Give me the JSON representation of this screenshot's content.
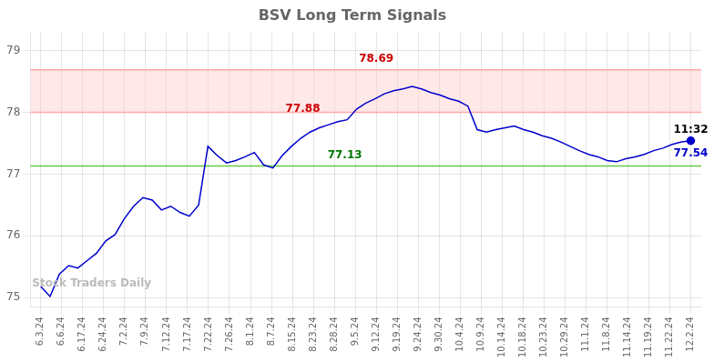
{
  "chart_data": {
    "type": "line",
    "title": "BSV Long Term Signals",
    "color": "#0000cc",
    "x": [
      0,
      0.442857,
      0.885714,
      1.328571,
      1.771429,
      2.214286,
      2.657143,
      3.1,
      3.542857,
      3.985714,
      4.428571,
      4.871429,
      5.314286,
      5.757143,
      6.2,
      6.642857,
      7.085714,
      7.528571,
      7.971429,
      8.414286,
      8.857143,
      9.3,
      9.742857,
      10.185714,
      10.628571,
      11.071429,
      11.514286,
      11.957143,
      12.4,
      12.842857,
      13.285714,
      13.728571,
      14.171429,
      14.614286,
      15.057143,
      15.5,
      15.942857,
      16.385714,
      16.828571,
      17.271429,
      17.714286,
      18.157143,
      18.6,
      19.042857,
      19.485714,
      19.928571,
      20.371429,
      20.814286,
      21.257143,
      21.7,
      22.142857,
      22.585714,
      23.028571,
      23.471429,
      23.914286,
      24.357143,
      24.8,
      25.242857,
      25.685714,
      26.128571,
      26.571429,
      27.014286,
      27.457143,
      27.9,
      28.342857,
      28.785714,
      29.228571,
      29.671429,
      30.114286,
      30.557143,
      31
    ],
    "values": [
      75.18,
      75.02,
      75.38,
      75.52,
      75.48,
      75.6,
      75.72,
      75.92,
      76.02,
      76.28,
      76.48,
      76.62,
      76.58,
      76.42,
      76.48,
      76.38,
      76.32,
      76.5,
      77.45,
      77.3,
      77.18,
      77.22,
      77.28,
      77.35,
      77.15,
      77.1,
      77.3,
      77.45,
      77.58,
      77.68,
      77.75,
      77.8,
      77.85,
      77.88,
      78.05,
      78.15,
      78.22,
      78.3,
      78.35,
      78.38,
      78.42,
      78.38,
      78.32,
      78.28,
      78.22,
      78.18,
      78.1,
      77.72,
      77.68,
      77.72,
      77.75,
      77.78,
      77.72,
      77.68,
      77.62,
      77.58,
      77.52,
      77.45,
      77.38,
      77.32,
      77.28,
      77.22,
      77.2,
      77.25,
      77.28,
      77.32,
      77.38,
      77.42,
      77.48,
      77.52,
      77.54
    ],
    "xlim": [
      -0.5,
      31.5
    ],
    "xticks": [
      {
        "value": 0,
        "label": "6.3.24"
      },
      {
        "value": 1,
        "label": "6.6.24"
      },
      {
        "value": 2,
        "label": "6.17.24"
      },
      {
        "value": 3,
        "label": "6.24.24"
      },
      {
        "value": 4,
        "label": "7.2.24"
      },
      {
        "value": 5,
        "label": "7.9.24"
      },
      {
        "value": 6,
        "label": "7.12.24"
      },
      {
        "value": 7,
        "label": "7.17.24"
      },
      {
        "value": 8,
        "label": "7.22.24"
      },
      {
        "value": 9,
        "label": "7.26.24"
      },
      {
        "value": 10,
        "label": "8.1.24"
      },
      {
        "value": 11,
        "label": "8.7.24"
      },
      {
        "value": 12,
        "label": "8.15.24"
      },
      {
        "value": 13,
        "label": "8.23.24"
      },
      {
        "value": 14,
        "label": "8.28.24"
      },
      {
        "value": 15,
        "label": "9.5.24"
      },
      {
        "value": 16,
        "label": "9.12.24"
      },
      {
        "value": 17,
        "label": "9.19.24"
      },
      {
        "value": 18,
        "label": "9.24.24"
      },
      {
        "value": 19,
        "label": "9.30.24"
      },
      {
        "value": 20,
        "label": "10.4.24"
      },
      {
        "value": 21,
        "label": "10.9.24"
      },
      {
        "value": 22,
        "label": "10.14.24"
      },
      {
        "value": 23,
        "label": "10.18.24"
      },
      {
        "value": 24,
        "label": "10.23.24"
      },
      {
        "value": 25,
        "label": "10.29.24"
      },
      {
        "value": 26,
        "label": "11.1.24"
      },
      {
        "value": 27,
        "label": "11.8.24"
      },
      {
        "value": 28,
        "label": "11.14.24"
      },
      {
        "value": 29,
        "label": "11.19.24"
      },
      {
        "value": 30,
        "label": "11.22.24"
      },
      {
        "value": 31,
        "label": "12.2.24"
      }
    ],
    "ylim": [
      74.85,
      79.3
    ],
    "yticks": [
      75,
      76,
      77,
      78,
      79
    ],
    "grid": true,
    "bands": [
      {
        "from": 78.0,
        "to": 78.69,
        "color": "#ffcccc"
      }
    ],
    "hlines": [
      {
        "y": 78.69,
        "color": "#ffaaaa"
      },
      {
        "y": 78.0,
        "color": "#ffaaaa"
      },
      {
        "y": 77.13,
        "color": "#66cc44"
      }
    ],
    "annotations": [
      {
        "text": "78.69",
        "x": 16,
        "y": 78.69,
        "color": "#cc0000",
        "align": "above"
      },
      {
        "text": "77.88",
        "x": 12.5,
        "y": 77.88,
        "color": "#cc0000",
        "align": "above"
      },
      {
        "text": "77.13",
        "x": 14.5,
        "y": 77.13,
        "color": "#007700",
        "align": "above"
      },
      {
        "text": "11:32",
        "x": 31,
        "y": 77.54,
        "color": "#000000",
        "align": "above"
      },
      {
        "text": "77.54",
        "x": 31,
        "y": 77.54,
        "color": "#0000cc",
        "align": "below"
      },
      {
        "text": "Stock Traders Daily",
        "x": 1,
        "y": 75.05,
        "color": "#bbbbbb",
        "align": "above"
      }
    ]
  }
}
